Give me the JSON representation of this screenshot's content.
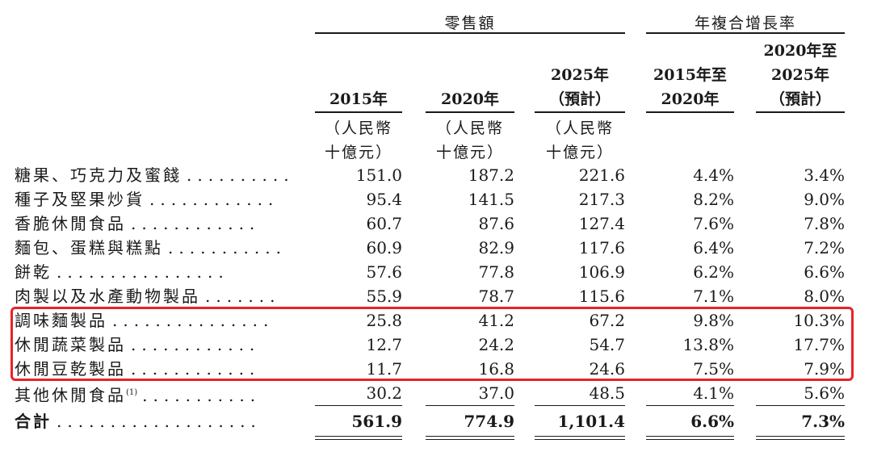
{
  "header": {
    "group_retail": "零售額",
    "group_cagr": "年複合增長率",
    "col_2015": "2015年",
    "col_2020": "2020年",
    "col_2025_l1": "2025年",
    "col_2025_l2": "（預計）",
    "col_cagr1_l1": "2015年至",
    "col_cagr1_l2": "2020年",
    "col_cagr2_l1": "2020年至",
    "col_cagr2_l2": "2025年",
    "col_cagr2_l3": "（預計）",
    "unit_l1": "（人民幣",
    "unit_l2": "十億元）"
  },
  "rows": [
    {
      "label": "糖果、巧克力及蜜餞",
      "dots": "..........",
      "v2015": "151.0",
      "v2020": "187.2",
      "v2025": "221.6",
      "cagr1": "4.4%",
      "cagr2": "3.4%"
    },
    {
      "label": "種子及堅果炒貨",
      "dots": "............",
      "v2015": "95.4",
      "v2020": "141.5",
      "v2025": "217.3",
      "cagr1": "8.2%",
      "cagr2": "9.0%"
    },
    {
      "label": "香脆休閒食品",
      "dots": "............",
      "v2015": "60.7",
      "v2020": "87.6",
      "v2025": "127.4",
      "cagr1": "7.6%",
      "cagr2": "7.8%"
    },
    {
      "label": "麵包、蛋糕與糕點",
      "dots": "...........",
      "v2015": "60.9",
      "v2020": "82.9",
      "v2025": "117.6",
      "cagr1": "6.4%",
      "cagr2": "7.2%"
    },
    {
      "label": "餅乾",
      "dots": "................",
      "v2015": "57.6",
      "v2020": "77.8",
      "v2025": "106.9",
      "cagr1": "6.2%",
      "cagr2": "6.6%"
    },
    {
      "label": "肉製以及水產動物製品",
      "dots": ".......",
      "v2015": "55.9",
      "v2020": "78.7",
      "v2025": "115.6",
      "cagr1": "7.1%",
      "cagr2": "8.0%"
    },
    {
      "label": "調味麵製品",
      "dots": "...............",
      "v2015": "25.8",
      "v2020": "41.2",
      "v2025": "67.2",
      "cagr1": "9.8%",
      "cagr2": "10.3%"
    },
    {
      "label": "休閒蔬菜製品",
      "dots": "............",
      "v2015": "12.7",
      "v2020": "24.2",
      "v2025": "54.7",
      "cagr1": "13.8%",
      "cagr2": "17.7%"
    },
    {
      "label": "休閒豆乾製品",
      "dots": "............",
      "v2015": "11.7",
      "v2020": "16.8",
      "v2025": "24.6",
      "cagr1": "7.5%",
      "cagr2": "7.9%"
    },
    {
      "label": "其他休閒食品",
      "sup": "(1)",
      "dots": "...........",
      "v2015": "30.2",
      "v2020": "37.0",
      "v2025": "48.5",
      "cagr1": "4.1%",
      "cagr2": "5.6%"
    }
  ],
  "total": {
    "label": "合計",
    "dots": "...................",
    "v2015": "561.9",
    "v2020": "774.9",
    "v2025": "1,101.4",
    "cagr1": "6.6%",
    "cagr2": "7.3%"
  },
  "highlight": {
    "color": "#e8222a",
    "rows": [
      "調味麵製品",
      "休閒蔬菜製品",
      "休閒豆乾製品"
    ]
  }
}
